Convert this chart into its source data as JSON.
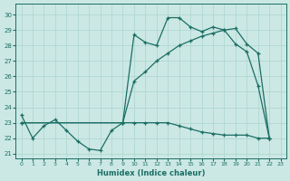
{
  "xlabel": "Humidex (Indice chaleur)",
  "bg_color": "#cce8e4",
  "grid_color": "#aad4cf",
  "line_color": "#1a6e64",
  "xlim": [
    -0.5,
    23.5
  ],
  "ylim": [
    20.7,
    30.7
  ],
  "yticks": [
    21,
    22,
    23,
    24,
    25,
    26,
    27,
    28,
    29,
    30
  ],
  "xticks": [
    0,
    1,
    2,
    3,
    4,
    5,
    6,
    7,
    8,
    9,
    10,
    11,
    12,
    13,
    14,
    15,
    16,
    17,
    18,
    19,
    20,
    21,
    22,
    23
  ],
  "s1x": [
    0,
    1,
    2,
    3,
    4,
    5,
    6,
    7,
    8,
    9,
    10,
    11,
    12,
    13,
    14,
    15,
    16,
    17,
    18,
    19,
    20,
    21,
    22
  ],
  "s1y": [
    23.5,
    22.0,
    22.8,
    23.2,
    22.5,
    21.8,
    21.3,
    21.2,
    22.5,
    23.0,
    28.7,
    28.2,
    28.0,
    29.8,
    29.8,
    29.2,
    28.9,
    29.2,
    29.0,
    28.1,
    27.6,
    25.4,
    22.0
  ],
  "s2x": [
    0,
    9,
    10,
    11,
    12,
    13,
    14,
    15,
    16,
    17,
    18,
    19,
    20,
    21,
    22
  ],
  "s2y": [
    23.0,
    23.0,
    25.7,
    26.3,
    27.0,
    27.5,
    28.0,
    28.3,
    28.6,
    28.8,
    29.0,
    29.1,
    28.1,
    27.5,
    22.0
  ],
  "s3x": [
    0,
    9,
    10,
    11,
    12,
    13,
    14,
    15,
    16,
    17,
    18,
    19,
    20,
    21,
    22
  ],
  "s3y": [
    23.0,
    23.0,
    23.0,
    23.0,
    23.0,
    23.0,
    22.8,
    22.6,
    22.4,
    22.3,
    22.2,
    22.2,
    22.2,
    22.0,
    22.0
  ]
}
